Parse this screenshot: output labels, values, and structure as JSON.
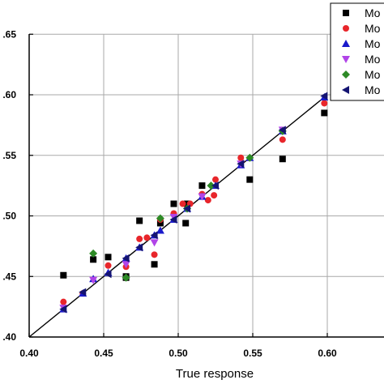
{
  "chart_data": {
    "type": "scatter",
    "title": "",
    "xlabel": "True response",
    "ylabel": "",
    "xlim": [
      0.4,
      0.64
    ],
    "ylim": [
      0.4,
      0.65
    ],
    "xticks": [
      "0.40",
      "0.45",
      "0.50",
      "0.55",
      "0.60"
    ],
    "yticks": [
      ".40",
      ".45",
      ".50",
      ".55",
      ".60",
      ".65"
    ],
    "grid": true,
    "legend_position": "top-right",
    "reference_line": {
      "from": [
        0.4,
        0.4
      ],
      "to": [
        0.6,
        0.6
      ],
      "color": "#000000"
    },
    "series": [
      {
        "name": "Mo",
        "marker": "square",
        "color": "#000000",
        "points": [
          [
            0.423,
            0.451
          ],
          [
            0.443,
            0.464
          ],
          [
            0.453,
            0.466
          ],
          [
            0.465,
            0.45
          ],
          [
            0.474,
            0.496
          ],
          [
            0.484,
            0.46
          ],
          [
            0.488,
            0.494
          ],
          [
            0.497,
            0.51
          ],
          [
            0.505,
            0.494
          ],
          [
            0.516,
            0.525
          ],
          [
            0.548,
            0.53
          ],
          [
            0.57,
            0.547
          ],
          [
            0.598,
            0.585
          ],
          [
            0.465,
            0.449
          ],
          [
            0.506,
            0.51
          ]
        ]
      },
      {
        "name": "Mo",
        "marker": "circle",
        "color": "#e8262b",
        "points": [
          [
            0.423,
            0.429
          ],
          [
            0.436,
            0.436
          ],
          [
            0.453,
            0.459
          ],
          [
            0.465,
            0.458
          ],
          [
            0.474,
            0.481
          ],
          [
            0.479,
            0.482
          ],
          [
            0.484,
            0.468
          ],
          [
            0.488,
            0.497
          ],
          [
            0.497,
            0.502
          ],
          [
            0.503,
            0.51
          ],
          [
            0.508,
            0.51
          ],
          [
            0.516,
            0.518
          ],
          [
            0.52,
            0.513
          ],
          [
            0.524,
            0.517
          ],
          [
            0.525,
            0.53
          ],
          [
            0.542,
            0.548
          ],
          [
            0.57,
            0.563
          ],
          [
            0.598,
            0.593
          ]
        ]
      },
      {
        "name": "Mo",
        "marker": "triangle-up",
        "color": "#1a1acb",
        "points": [
          [
            0.423,
            0.423
          ],
          [
            0.436,
            0.436
          ],
          [
            0.443,
            0.448
          ],
          [
            0.453,
            0.453
          ],
          [
            0.465,
            0.465
          ],
          [
            0.474,
            0.474
          ],
          [
            0.484,
            0.484
          ],
          [
            0.488,
            0.488
          ],
          [
            0.497,
            0.497
          ],
          [
            0.506,
            0.506
          ],
          [
            0.516,
            0.516
          ],
          [
            0.525,
            0.525
          ],
          [
            0.542,
            0.542
          ],
          [
            0.548,
            0.548
          ],
          [
            0.57,
            0.57
          ],
          [
            0.598,
            0.598
          ]
        ]
      },
      {
        "name": "Mo",
        "marker": "triangle-down",
        "color": "#b144e8",
        "points": [
          [
            0.423,
            0.424
          ],
          [
            0.443,
            0.447
          ],
          [
            0.465,
            0.46
          ],
          [
            0.484,
            0.478
          ],
          [
            0.497,
            0.499
          ],
          [
            0.516,
            0.516
          ],
          [
            0.542,
            0.543
          ],
          [
            0.57,
            0.571
          ]
        ]
      },
      {
        "name": "Mo",
        "marker": "diamond",
        "color": "#2d8a26",
        "points": [
          [
            0.443,
            0.469
          ],
          [
            0.465,
            0.449
          ],
          [
            0.488,
            0.498
          ],
          [
            0.506,
            0.506
          ],
          [
            0.522,
            0.525
          ],
          [
            0.548,
            0.548
          ],
          [
            0.57,
            0.57
          ]
        ]
      },
      {
        "name": "Mo",
        "marker": "triangle-left",
        "color": "#141472",
        "points": [
          [
            0.423,
            0.423
          ],
          [
            0.436,
            0.437
          ],
          [
            0.453,
            0.452
          ],
          [
            0.465,
            0.465
          ],
          [
            0.474,
            0.474
          ],
          [
            0.484,
            0.484
          ],
          [
            0.497,
            0.497
          ],
          [
            0.506,
            0.506
          ],
          [
            0.525,
            0.525
          ],
          [
            0.542,
            0.543
          ],
          [
            0.57,
            0.571
          ],
          [
            0.598,
            0.599
          ]
        ]
      }
    ]
  }
}
